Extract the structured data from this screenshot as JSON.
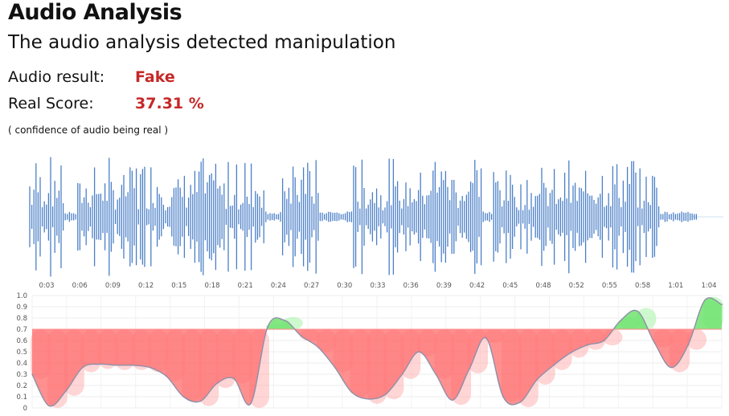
{
  "header": {
    "title": "Audio Analysis",
    "subtitle": "The audio analysis detected manipulation",
    "result_label": "Audio result:",
    "result_value": "Fake",
    "score_label": "Real Score:",
    "score_value": "37.31 %",
    "note": "( confidence of audio being real )"
  },
  "colors": {
    "waveform": "#4a7fc7",
    "fake_fill": "#ff6b6b",
    "fake_band": "#ffb3b3",
    "real_fill": "#6fe36f",
    "real_band": "#b9f5b9",
    "curve": "#8f8fa8",
    "threshold": "#ff8a8a"
  },
  "chart_data": [
    {
      "type": "area",
      "x_ticks": [
        "0:03",
        "0:06",
        "0:09",
        "0:12",
        "0:15",
        "0:18",
        "0:21",
        "0:24",
        "0:27",
        "0:30",
        "0:33",
        "0:36",
        "0:39",
        "0:42",
        "0:45",
        "0:48",
        "0:52",
        "0:55",
        "0:58",
        "1:01",
        "1:04"
      ]
    },
    {
      "type": "area",
      "ylim": [
        0,
        1
      ],
      "y_ticks": [
        "0",
        "0.1",
        "0.2",
        "0.3",
        "0.4",
        "0.5",
        "0.6",
        "0.7",
        "0.8",
        "0.9",
        "1.0"
      ],
      "threshold": 0.7,
      "x": [
        0,
        0.5,
        1,
        1.5,
        2,
        2.5,
        3,
        3.5,
        4,
        4.5,
        5,
        5.5,
        6,
        6.5,
        7,
        7.5,
        8,
        8.5,
        9,
        9.5,
        10,
        10.5,
        11,
        11.5,
        12,
        12.5,
        13,
        13.5,
        14,
        14.5,
        15,
        15.5,
        16,
        16.5,
        17,
        17.5,
        18,
        18.5,
        19,
        19.5,
        20,
        20.5
      ],
      "values": [
        0.3,
        0.02,
        0.15,
        0.36,
        0.39,
        0.38,
        0.38,
        0.36,
        0.28,
        0.1,
        0.06,
        0.22,
        0.26,
        0.04,
        0.72,
        0.78,
        0.64,
        0.54,
        0.36,
        0.14,
        0.08,
        0.12,
        0.3,
        0.5,
        0.3,
        0.07,
        0.35,
        0.62,
        0.1,
        0.05,
        0.25,
        0.38,
        0.49,
        0.56,
        0.6,
        0.78,
        0.86,
        0.58,
        0.36,
        0.56,
        0.96,
        0.92
      ]
    }
  ]
}
